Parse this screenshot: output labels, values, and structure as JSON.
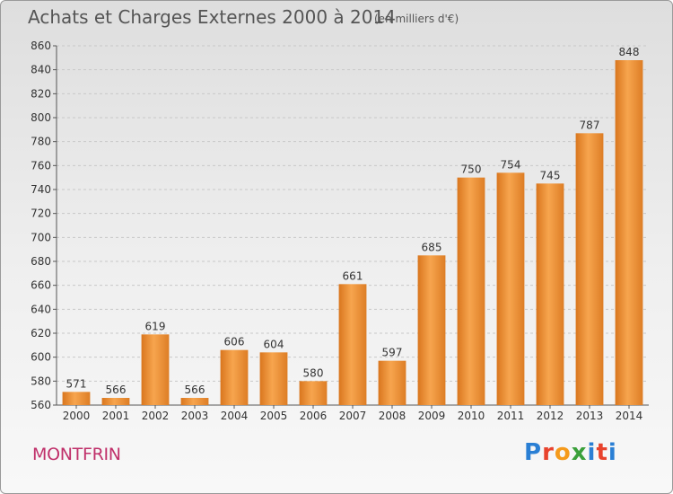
{
  "header": {
    "title": "Achats et Charges Externes 2000 à 2014",
    "unit": "(en milliers d'€)"
  },
  "footer": {
    "city": "MONTFRIN",
    "logo": "Proxiti"
  },
  "colors": {
    "bar_light": "#f7a54e",
    "bar_dark": "#d9761e",
    "city": "#c0306a",
    "grid": "#c8c8c8"
  },
  "chart_data": {
    "type": "bar",
    "title": "Achats et Charges Externes 2000 à 2014",
    "subtitle": "(en milliers d'€)",
    "xlabel": "",
    "ylabel": "",
    "categories": [
      "2000",
      "2001",
      "2002",
      "2003",
      "2004",
      "2005",
      "2006",
      "2007",
      "2008",
      "2009",
      "2010",
      "2011",
      "2012",
      "2013",
      "2014"
    ],
    "values": [
      571,
      566,
      619,
      566,
      606,
      604,
      580,
      661,
      597,
      685,
      750,
      754,
      745,
      787,
      848
    ],
    "ylim": [
      560,
      860
    ],
    "yticks": [
      560,
      580,
      600,
      620,
      640,
      660,
      680,
      700,
      720,
      740,
      760,
      780,
      800,
      820,
      840,
      860
    ],
    "grid": true,
    "legend": "none"
  }
}
